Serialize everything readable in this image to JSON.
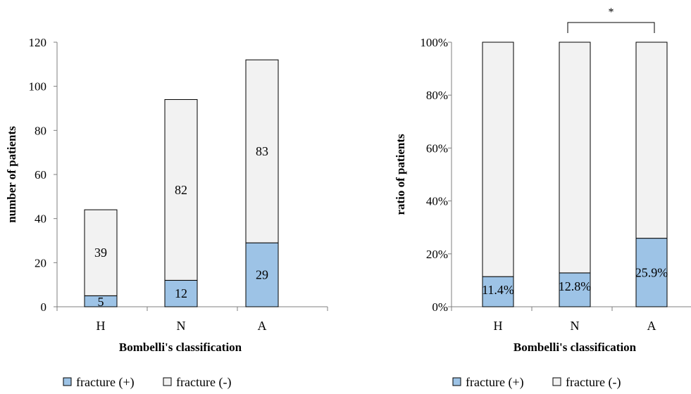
{
  "chart_data": [
    {
      "type": "bar",
      "stacked": true,
      "categories": [
        "H",
        "N",
        "A"
      ],
      "series": [
        {
          "name": "fracture (+)",
          "values": [
            5,
            12,
            29
          ],
          "color": "#9dc3e6"
        },
        {
          "name": "fracture (-)",
          "values": [
            39,
            82,
            83
          ],
          "color": "#f2f2f2"
        }
      ],
      "ylim": [
        0,
        120
      ],
      "yticks": [
        "0",
        "20",
        "40",
        "60",
        "80",
        "100",
        "120"
      ],
      "xlabel": "Bombelli's classification",
      "ylabel": "number of patients",
      "data_labels": [
        [
          "5",
          "12",
          "29"
        ],
        [
          "39",
          "82",
          "83"
        ]
      ],
      "legend": "bottom"
    },
    {
      "type": "bar",
      "stacked": true,
      "percent": true,
      "categories": [
        "H",
        "N",
        "A"
      ],
      "series": [
        {
          "name": "fracture (+)",
          "values": [
            11.4,
            12.8,
            25.9
          ],
          "color": "#9dc3e6"
        },
        {
          "name": "fracture (-)",
          "values": [
            88.6,
            87.2,
            74.1
          ],
          "color": "#f2f2f2"
        }
      ],
      "ylim": [
        0,
        100
      ],
      "yticks": [
        "0%",
        "20%",
        "40%",
        "60%",
        "80%",
        "100%"
      ],
      "xlabel": "Bombelli's classification",
      "ylabel": "ratio of patients",
      "data_labels": [
        [
          "11.4%",
          "12.8%",
          "25.9%"
        ]
      ],
      "significance": {
        "from": "N",
        "to": "A",
        "label": "*"
      },
      "legend": "bottom"
    }
  ]
}
